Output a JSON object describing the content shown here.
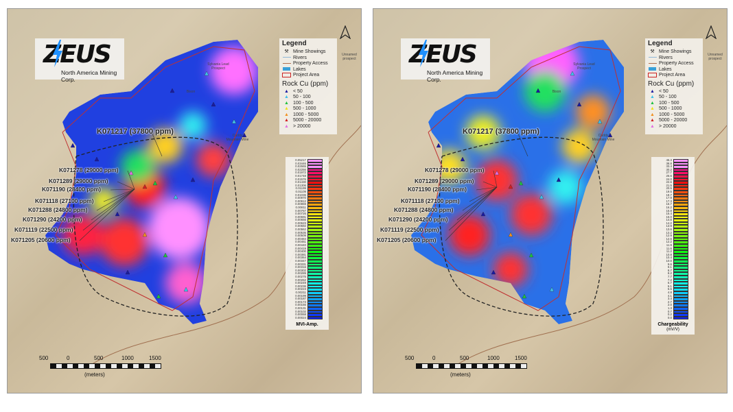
{
  "logo": {
    "text": "ZEUS",
    "subtitle": "North America Mining Corp."
  },
  "legend": {
    "title": "Legend",
    "items": [
      {
        "label": "Mine Showings",
        "icon": "pick-icon"
      },
      {
        "label": "Rivers",
        "color": "#8fb8d8"
      },
      {
        "label": "Property Access",
        "color": "#b07050"
      },
      {
        "label": "Lakes",
        "color": "#3aa0d8"
      },
      {
        "label": "Project Area",
        "color": "#cc2222"
      }
    ],
    "rock_title": "Rock Cu (ppm)",
    "rock_classes": [
      {
        "label": "< 50",
        "color": "#1a1aa0"
      },
      {
        "label": "50 - 100",
        "color": "#40c0e8"
      },
      {
        "label": "100 - 500",
        "color": "#20c040"
      },
      {
        "label": "500 - 1000",
        "color": "#f0e020"
      },
      {
        "label": "1000 - 5000",
        "color": "#f09020"
      },
      {
        "label": "5000 - 20000",
        "color": "#d02020"
      },
      {
        "label": "> 20000",
        "color": "#e070e0"
      }
    ]
  },
  "samples": [
    {
      "label": "K071217 (37800 ppm)"
    },
    {
      "label": "K071278 (29000 ppm)"
    },
    {
      "label": "K071289 (29000 ppm)"
    },
    {
      "label": "K071190 (28400 ppm)"
    },
    {
      "label": "K071118 (27100 ppm)"
    },
    {
      "label": "K071288 (24800 ppm)"
    },
    {
      "label": "K071290 (24200 ppm)"
    },
    {
      "label": "K071119 (22500 ppm)"
    },
    {
      "label": "K071205 (20600 ppm)"
    }
  ],
  "places": [
    "Sylvania Lead Prospect",
    "Cuddy Mountain Mine",
    "Unnamed prospect",
    "Bison"
  ],
  "scale": {
    "ticks": [
      "500",
      "0",
      "500",
      "1000",
      "1500"
    ],
    "unit": "(meters)"
  },
  "panels": [
    {
      "colorbar_title": "MVI-Amp.",
      "colorbar_unit": "",
      "colorbar_values": [
        "0.05217",
        "0.03446",
        "0.02665",
        "0.02256",
        "0.01972",
        "0.01748",
        "0.01576",
        "0.01430",
        "0.01306",
        "0.01199",
        "0.01109",
        "0.01036",
        "0.00970",
        "0.00912",
        "0.00859",
        "0.00811",
        "0.00767",
        "0.00726",
        "0.00691",
        "0.00656",
        "0.00623",
        "0.00592",
        "0.00562",
        "0.00535",
        "0.00509",
        "0.00484",
        "0.00461",
        "0.00440",
        "0.00419",
        "0.00400",
        "0.00381",
        "0.00364",
        "0.00347",
        "0.00331",
        "0.00316",
        "0.00302",
        "0.00289",
        "0.00275",
        "0.00262",
        "0.00249",
        "0.00236",
        "0.00223",
        "0.00211",
        "0.00199",
        "0.00187",
        "0.00173",
        "0.00156",
        "0.00131",
        "0.00102",
        "0.00068",
        "0.00024"
      ]
    },
    {
      "colorbar_title": "Chargeability",
      "colorbar_unit": "(mV/V)",
      "colorbar_values": [
        "45.3",
        "38.8",
        "33.4",
        "30.2",
        "27.7",
        "25.6",
        "24.0",
        "22.6",
        "21.5",
        "20.5",
        "19.5",
        "18.7",
        "17.9",
        "17.3",
        "16.7",
        "16.2",
        "15.8",
        "15.4",
        "15.0",
        "14.6",
        "14.2",
        "13.9",
        "13.6",
        "13.2",
        "12.9",
        "12.6",
        "12.2",
        "11.9",
        "11.6",
        "11.2",
        "10.8",
        "10.4",
        "10.0",
        "9.6",
        "9.1",
        "8.7",
        "8.2",
        "7.7",
        "7.2",
        "6.7",
        "6.1",
        "5.5",
        "4.8",
        "4.1",
        "3.4",
        "2.7",
        "2.0",
        "1.3",
        "0.7",
        "0.2",
        "0.0"
      ]
    }
  ]
}
